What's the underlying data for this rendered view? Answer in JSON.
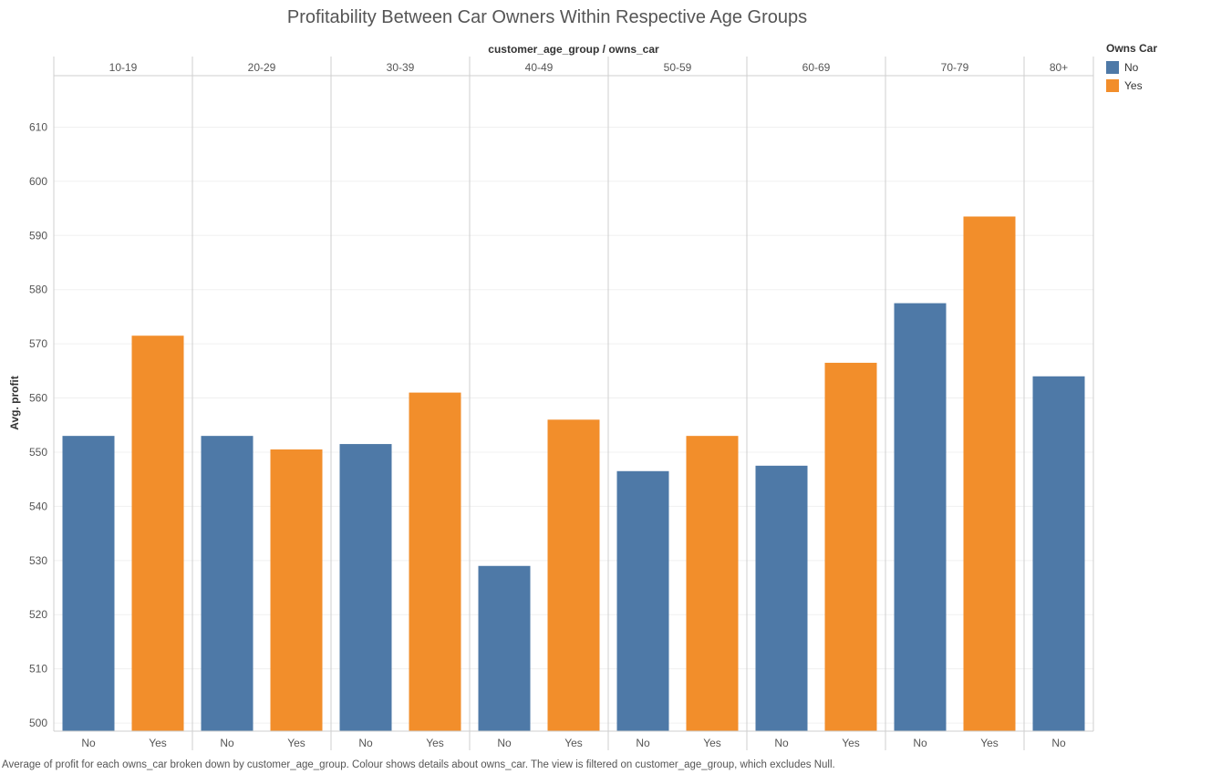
{
  "title": "Profitability Between Car Owners Within Respective Age Groups",
  "footnote": "Average of profit for each owns_car broken down by customer_age_group.  Colour shows details about owns_car. The view is filtered on customer_age_group, which excludes Null.",
  "legend": {
    "title": "Owns Car",
    "items": [
      {
        "label": "No",
        "color": "#4e79a7"
      },
      {
        "label": "Yes",
        "color": "#f28e2b"
      }
    ]
  },
  "chart_data": {
    "type": "bar",
    "column_header": "customer_age_group / owns_car",
    "ylabel": "Avg. profit",
    "ylim": [
      498.5,
      619.5
    ],
    "yticks": [
      500,
      510,
      520,
      530,
      540,
      550,
      560,
      570,
      580,
      590,
      600,
      610
    ],
    "grid": true,
    "legend_position": "top-right",
    "groups": [
      {
        "name": "10-19",
        "bars": [
          {
            "label": "No",
            "value": 553.0
          },
          {
            "label": "Yes",
            "value": 571.5
          }
        ]
      },
      {
        "name": "20-29",
        "bars": [
          {
            "label": "No",
            "value": 553.0
          },
          {
            "label": "Yes",
            "value": 550.5
          }
        ]
      },
      {
        "name": "30-39",
        "bars": [
          {
            "label": "No",
            "value": 551.5
          },
          {
            "label": "Yes",
            "value": 561.0
          }
        ]
      },
      {
        "name": "40-49",
        "bars": [
          {
            "label": "No",
            "value": 529.0
          },
          {
            "label": "Yes",
            "value": 556.0
          }
        ]
      },
      {
        "name": "50-59",
        "bars": [
          {
            "label": "No",
            "value": 546.5
          },
          {
            "label": "Yes",
            "value": 553.0
          }
        ]
      },
      {
        "name": "60-69",
        "bars": [
          {
            "label": "No",
            "value": 547.5
          },
          {
            "label": "Yes",
            "value": 566.5
          }
        ]
      },
      {
        "name": "70-79",
        "bars": [
          {
            "label": "No",
            "value": 577.5
          },
          {
            "label": "Yes",
            "value": 593.5
          }
        ]
      },
      {
        "name": "80+",
        "bars": [
          {
            "label": "No",
            "value": 564.0
          }
        ]
      }
    ]
  }
}
